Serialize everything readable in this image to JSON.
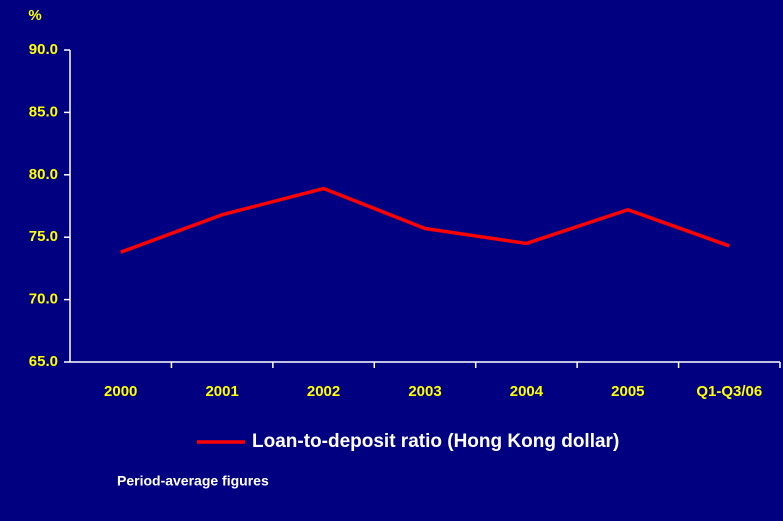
{
  "chart_data": {
    "type": "line",
    "y_label": "%",
    "categories": [
      "2000",
      "2001",
      "2002",
      "2003",
      "2004",
      "2005",
      "Q1-Q3/06"
    ],
    "series": [
      {
        "name": "Loan-to-deposit ratio (Hong Kong dollar)",
        "color": "#ff0000",
        "values": [
          73.8,
          76.8,
          78.9,
          75.7,
          74.5,
          77.2,
          74.3
        ]
      }
    ],
    "ylim": [
      65,
      90
    ],
    "yticks": [
      {
        "value": 65,
        "label": "65.0"
      },
      {
        "value": 70,
        "label": "70.0"
      },
      {
        "value": 75,
        "label": "75.0"
      },
      {
        "value": 80,
        "label": "80.0"
      },
      {
        "value": 85,
        "label": "85.0"
      },
      {
        "value": 90,
        "label": "90.0"
      }
    ],
    "grid": false,
    "legend": "bottom",
    "footnote": "Period-average figures"
  }
}
